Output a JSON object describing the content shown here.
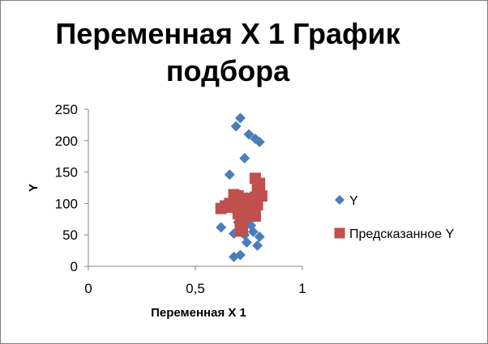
{
  "chart_data": {
    "type": "scatter",
    "title": "Переменная X 1 График подбора",
    "xlabel": "Переменная X 1",
    "ylabel": "Y",
    "xlim": [
      0,
      1
    ],
    "ylim": [
      0,
      250
    ],
    "xticks": [
      "0",
      "0,5",
      "1"
    ],
    "yticks": [
      "0",
      "50",
      "100",
      "150",
      "200",
      "250"
    ],
    "grid": false,
    "legend_position": "right",
    "series": [
      {
        "name": "Y",
        "marker": "diamond",
        "color": "#4a7ebb",
        "points": [
          [
            0.71,
            236
          ],
          [
            0.69,
            223
          ],
          [
            0.75,
            210
          ],
          [
            0.78,
            203
          ],
          [
            0.8,
            198
          ],
          [
            0.73,
            172
          ],
          [
            0.66,
            146
          ],
          [
            0.62,
            62
          ],
          [
            0.68,
            52
          ],
          [
            0.73,
            50
          ],
          [
            0.77,
            55
          ],
          [
            0.8,
            47
          ],
          [
            0.74,
            38
          ],
          [
            0.79,
            33
          ],
          [
            0.68,
            15
          ],
          [
            0.71,
            18
          ],
          [
            0.7,
            70
          ],
          [
            0.76,
            65
          ],
          [
            0.72,
            90
          ],
          [
            0.69,
            100
          ],
          [
            0.74,
            110
          ],
          [
            0.78,
            95
          ],
          [
            0.71,
            80
          ]
        ]
      },
      {
        "name": "Предсказанное Y",
        "marker": "square",
        "color": "#c0504d",
        "points": [
          [
            0.78,
            140
          ],
          [
            0.8,
            132
          ],
          [
            0.79,
            122
          ],
          [
            0.81,
            112
          ],
          [
            0.78,
            110
          ],
          [
            0.75,
            108
          ],
          [
            0.73,
            106
          ],
          [
            0.7,
            112
          ],
          [
            0.68,
            114
          ],
          [
            0.72,
            102
          ],
          [
            0.76,
            100
          ],
          [
            0.79,
            98
          ],
          [
            0.66,
            100
          ],
          [
            0.64,
            96
          ],
          [
            0.62,
            92
          ],
          [
            0.67,
            94
          ],
          [
            0.7,
            92
          ],
          [
            0.74,
            90
          ],
          [
            0.77,
            88
          ],
          [
            0.72,
            86
          ],
          [
            0.7,
            84
          ],
          [
            0.75,
            82
          ],
          [
            0.78,
            80
          ],
          [
            0.73,
            78
          ],
          [
            0.71,
            72
          ],
          [
            0.72,
            60
          ],
          [
            0.71,
            56
          ],
          [
            0.69,
            104
          ],
          [
            0.77,
            104
          ],
          [
            0.8,
            118
          ]
        ]
      }
    ]
  }
}
